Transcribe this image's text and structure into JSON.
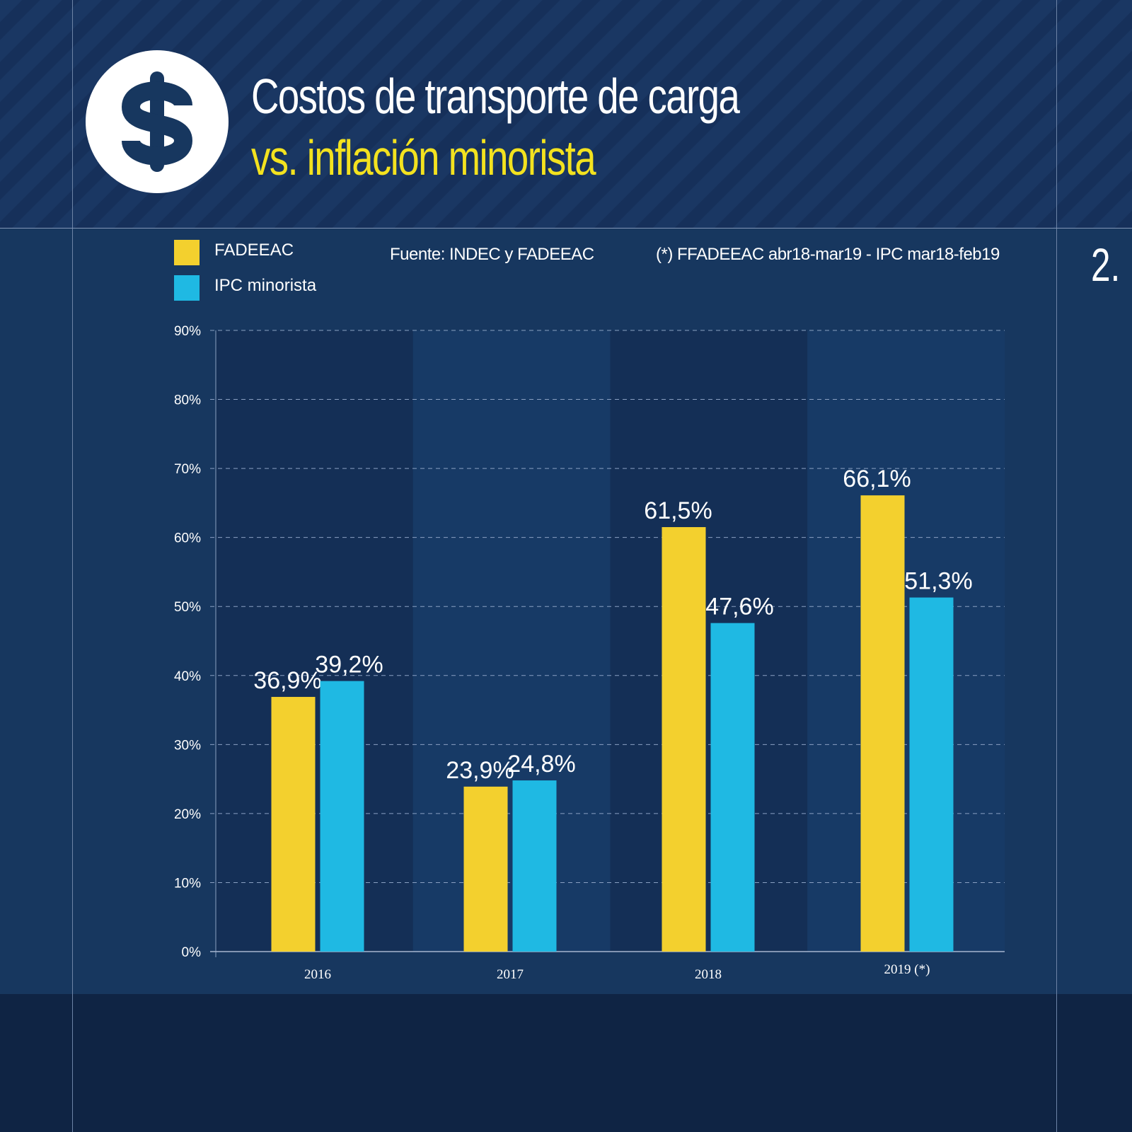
{
  "header": {
    "title_line1": "Costos de transporte de carga",
    "title_line2": "vs. inflación minorista",
    "icon": "dollar-sign-icon"
  },
  "notes": {
    "source": "Fuente: INDEC y FADEEAC",
    "footnote": "(*) FFADEEAC abr18-mar19 - IPC mar18-feb19"
  },
  "page_number": "2.",
  "colors": {
    "fadeeac": "#f3d02e",
    "ipc": "#1fb9e3",
    "background": "#17375f",
    "title_accent": "#f3e21f"
  },
  "chart_data": {
    "type": "bar",
    "title": "Costos de transporte de carga vs. inflación minorista",
    "categories": [
      "2016",
      "2017",
      "2018",
      "2019 (*)"
    ],
    "series": [
      {
        "name": "FADEEAC",
        "values": [
          36.9,
          23.9,
          61.5,
          66.1
        ],
        "labels": [
          "36,9%",
          "23,9%",
          "61,5%",
          "66,1%"
        ],
        "color": "#f3d02e"
      },
      {
        "name": "IPC minorista",
        "values": [
          39.2,
          24.8,
          47.6,
          51.3
        ],
        "labels": [
          "39,2%",
          "24,8%",
          "47,6%",
          "51,3%"
        ],
        "color": "#1fb9e3"
      }
    ],
    "yticks": [
      "0%",
      "10%",
      "20%",
      "30%",
      "40%",
      "50%",
      "60%",
      "70%",
      "80%",
      "90%"
    ],
    "ylim": [
      0,
      90
    ],
    "grid": true,
    "legend": "top-left"
  }
}
